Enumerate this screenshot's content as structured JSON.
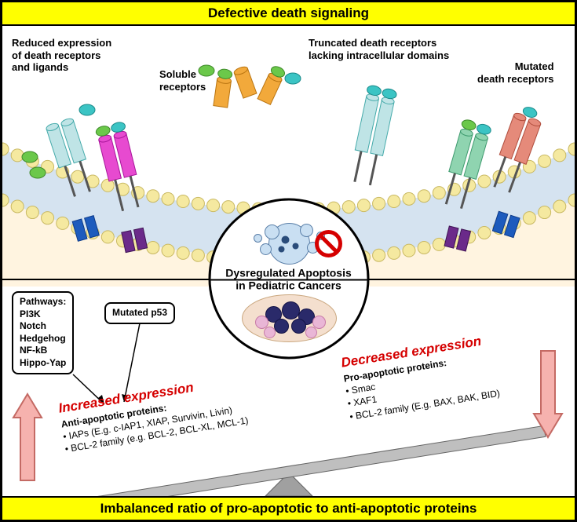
{
  "title_top": "Defective death signaling",
  "title_bottom": "Imbalanced ratio of pro-apoptotic to anti-apoptotic proteins",
  "labels": {
    "reduced": "Reduced expression\nof death receptors\nand ligands",
    "soluble": "Soluble\nreceptors",
    "truncated": "Truncated death receptors\nlacking intracellular domains",
    "mutated": "Mutated\ndeath receptors"
  },
  "center_title": "Dysregulated Apoptosis\nin Pediatric Cancers",
  "pathways_header": "Pathways:",
  "pathways": [
    "PI3K",
    "Notch",
    "Hedgehog",
    "NF-kB",
    "Hippo-Yap"
  ],
  "p53_label": "Mutated p53",
  "increased_header": "Increased expression",
  "increased_sub": "Anti-apoptotic proteins:",
  "increased_items": [
    "IAPs (E.g. c-IAP1, XIAP, Survivin, Livin)",
    "BCL-2 family (e.g. BCL-2, BCL-XL, MCL-1)"
  ],
  "decreased_header": "Decreased expression",
  "decreased_sub": "Pro-apoptotic proteins:",
  "decreased_items": [
    "Smac",
    "XAF1",
    "BCL-2 family (E.g. BAX, BAK, BID)"
  ],
  "colors": {
    "yellow": "#ffff00",
    "red_text": "#d50000",
    "arrow_fill": "#f6b2ae",
    "seesaw_board": "#bfbfbf",
    "seesaw_fulcrum": "#a0a0a0",
    "membrane_head": "#f5e9a0",
    "membrane_band": "#d5e3f0",
    "inner_fill": "#fff4e0",
    "prohibit": "#d50000",
    "receptors": {
      "lightblue": "#bfe4e6",
      "magenta": "#e74ad0",
      "orange": "#f2a93b",
      "green_ligand": "#6bc84a",
      "teal_ligand": "#3bc4c4",
      "darkblue": "#1d5bbd",
      "purple": "#6b2a8a",
      "mint": "#8fd4b0",
      "coral": "#e58a7a"
    }
  },
  "style": {
    "title_fontsize": 17,
    "label_fontsize": 13,
    "center_fontsize": 14,
    "body_fontsize": 12,
    "membrane_head_radius": 8
  }
}
